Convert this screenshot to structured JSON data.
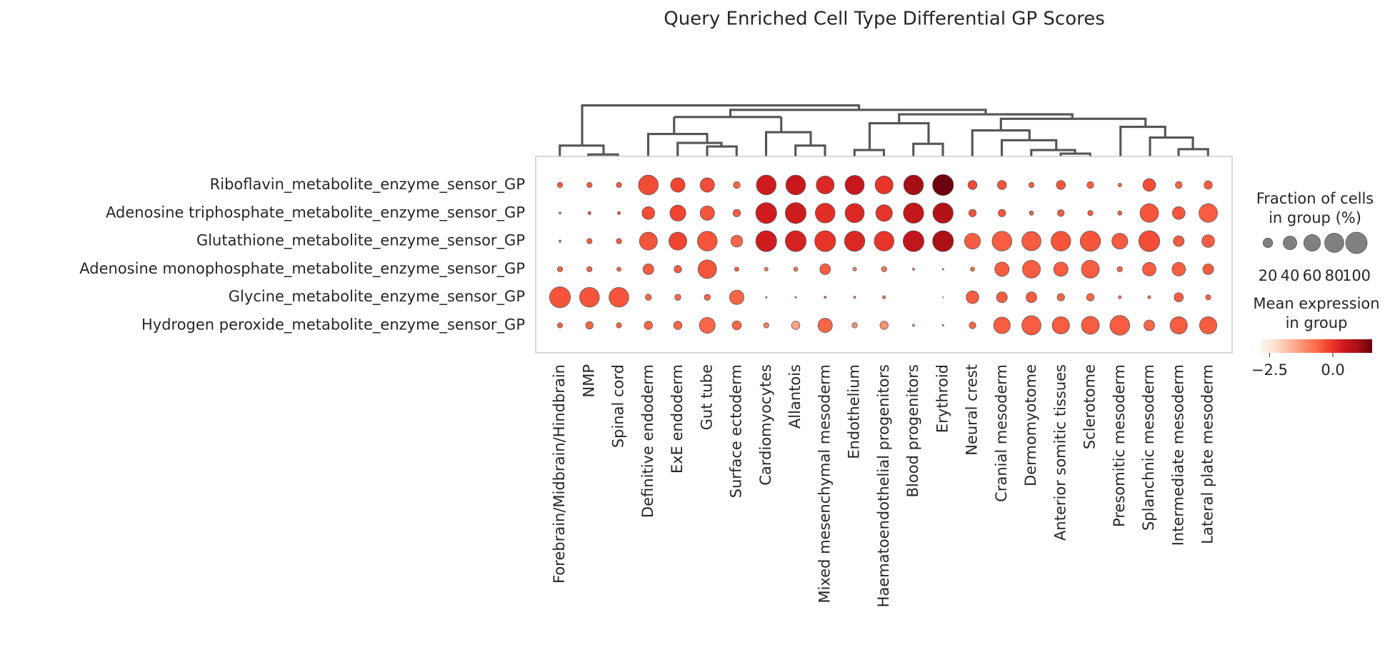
{
  "chart_data": {
    "type": "dotplot",
    "title": "Query Enriched Cell Type Differential GP Scores",
    "categories": [
      "Forebrain/Midbrain/Hindbrain",
      "NMP",
      "Spinal cord",
      "Definitive endoderm",
      "ExE endoderm",
      "Gut tube",
      "Surface ectoderm",
      "Cardiomyocytes",
      "Allantois",
      "Mixed mesenchymal mesoderm",
      "Endothelium",
      "Haematoendothelial progenitors",
      "Blood progenitors",
      "Erythroid",
      "Neural crest",
      "Cranial mesoderm",
      "Dermomyotome",
      "Anterior somitic tissues",
      "Sclerotome",
      "Presomitic mesoderm",
      "Splanchnic mesoderm",
      "Intermediate mesoderm",
      "Lateral plate mesoderm"
    ],
    "series": [
      {
        "name": "Riboflavin_metabolite_enzyme_sensor_GP",
        "fraction": [
          6,
          6,
          6,
          85,
          45,
          45,
          10,
          85,
          85,
          70,
          80,
          70,
          85,
          95,
          18,
          18,
          6,
          18,
          10,
          3,
          35,
          10,
          15
        ],
        "expression": [
          -0.5,
          -0.5,
          -0.5,
          -0.3,
          -0.2,
          -0.3,
          -0.6,
          0.4,
          0.5,
          0.2,
          0.5,
          0.0,
          1.0,
          1.5,
          -0.3,
          -0.4,
          -0.5,
          -0.4,
          -0.5,
          -0.6,
          -0.3,
          -0.6,
          -0.5
        ]
      },
      {
        "name": "Adenosine triphosphate_metabolite_enzyme_sensor_GP",
        "fraction": [
          1,
          2,
          2,
          35,
          55,
          45,
          12,
          95,
          95,
          85,
          80,
          60,
          90,
          90,
          12,
          12,
          4,
          10,
          6,
          4,
          75,
          35,
          75
        ],
        "expression": [
          -0.8,
          -0.5,
          -0.5,
          -0.3,
          -0.2,
          -0.4,
          -0.5,
          0.4,
          0.4,
          0.1,
          0.2,
          0.0,
          0.6,
          0.8,
          -0.4,
          -0.4,
          -0.6,
          -0.5,
          -0.5,
          -0.6,
          -0.4,
          -0.4,
          -0.5
        ]
      },
      {
        "name": "Glutathione_metabolite_enzyme_sensor_GP",
        "fraction": [
          1,
          6,
          6,
          70,
          70,
          85,
          30,
          95,
          95,
          95,
          90,
          85,
          95,
          95,
          55,
          85,
          80,
          85,
          90,
          55,
          95,
          25,
          35
        ],
        "expression": [
          -0.8,
          -0.5,
          -0.5,
          -0.4,
          -0.2,
          -0.4,
          -0.6,
          0.4,
          0.3,
          0.0,
          0.2,
          0.0,
          0.6,
          0.9,
          -0.5,
          -0.5,
          -0.5,
          -0.4,
          -0.4,
          -0.5,
          -0.3,
          -0.5,
          -0.5
        ]
      },
      {
        "name": "Adenosine monophosphate_metabolite_enzyme_sensor_GP",
        "fraction": [
          6,
          6,
          4,
          25,
          12,
          75,
          4,
          3,
          4,
          25,
          3,
          6,
          1,
          0.5,
          4,
          45,
          70,
          45,
          70,
          6,
          40,
          40,
          25
        ],
        "expression": [
          -0.6,
          -0.6,
          -0.6,
          -0.5,
          -0.5,
          -0.4,
          -0.6,
          -0.8,
          -0.8,
          -0.5,
          -1.0,
          -0.9,
          -0.8,
          -0.8,
          -0.7,
          -0.5,
          -0.5,
          -0.5,
          -0.5,
          -0.6,
          -0.5,
          -0.5,
          -0.5
        ]
      },
      {
        "name": "Glycine_metabolite_enzyme_sensor_GP",
        "fraction": [
          95,
          85,
          85,
          8,
          8,
          8,
          45,
          0.5,
          0.5,
          1,
          1,
          2,
          0,
          0.2,
          35,
          25,
          25,
          12,
          12,
          2,
          2,
          18,
          6
        ],
        "expression": [
          -0.4,
          -0.4,
          -0.4,
          -0.6,
          -0.6,
          -0.6,
          -0.6,
          -1.0,
          -1.0,
          -0.8,
          -1.0,
          -0.8,
          -1.0,
          -1.0,
          -0.5,
          -0.5,
          -0.5,
          -0.6,
          -0.6,
          -0.8,
          -0.8,
          -0.5,
          -0.6
        ]
      },
      {
        "name": "Hydrogen peroxide_metabolite_enzyme_sensor_GP",
        "fraction": [
          6,
          12,
          6,
          15,
          15,
          55,
          18,
          6,
          15,
          45,
          6,
          15,
          1,
          0.5,
          10,
          60,
          80,
          65,
          70,
          85,
          25,
          65,
          65
        ],
        "expression": [
          -0.6,
          -0.6,
          -0.6,
          -0.6,
          -0.6,
          -0.6,
          -0.6,
          -1.0,
          -1.4,
          -0.6,
          -1.2,
          -1.2,
          -1.0,
          -1.0,
          -0.6,
          -0.5,
          -0.5,
          -0.5,
          -0.5,
          -0.5,
          -0.6,
          -0.5,
          -0.5
        ]
      }
    ],
    "size_legend_title": "Fraction of cells\nin group (%)",
    "size_ticks": [
      20,
      40,
      60,
      80,
      100
    ],
    "color_legend_title": "Mean expression\nin group",
    "colormap": [
      "#fff5f0",
      "#fee0d2",
      "#fcbba1",
      "#fc9272",
      "#fb6a4a",
      "#ef3b2c",
      "#cb181d",
      "#a50f15",
      "#67000d"
    ],
    "clim": [
      -2.85,
      1.55
    ],
    "cticks": [
      {
        "value": -2.5,
        "label": "−2.5"
      },
      {
        "value": 0.0,
        "label": "0.0"
      }
    ]
  }
}
